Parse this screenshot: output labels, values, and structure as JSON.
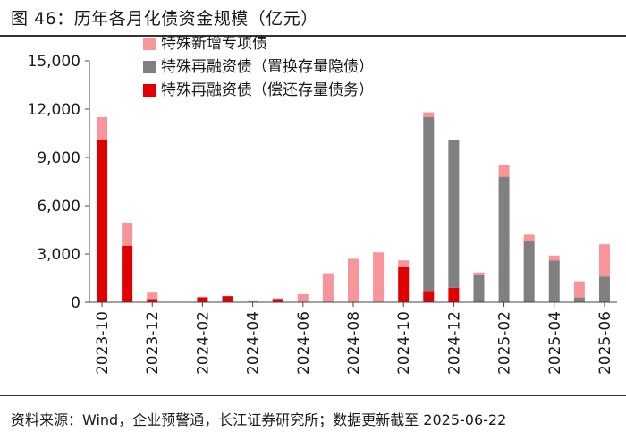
{
  "figure": {
    "title": "图 46：历年各月化债资金规模（亿元）",
    "source": "资料来源：Wind，企业预警通，长江证券研究所；数据更新截至 2025-06-22"
  },
  "chart_data": {
    "type": "bar",
    "stacked": true,
    "title": "历年各月化债资金规模（亿元）",
    "xlabel": "",
    "ylabel": "",
    "ylim": [
      0,
      15000
    ],
    "yticks": [
      0,
      3000,
      6000,
      9000,
      12000,
      15000
    ],
    "ytick_labels": [
      "0",
      "3,000",
      "6,000",
      "9,000",
      "12,000",
      "15,000"
    ],
    "legend_position": "top-center",
    "categories": [
      "2023-10",
      "2023-11",
      "2023-12",
      "2024-01",
      "2024-02",
      "2024-03",
      "2024-04",
      "2024-05",
      "2024-06",
      "2024-07",
      "2024-08",
      "2024-09",
      "2024-10",
      "2024-11",
      "2024-12",
      "2025-01",
      "2025-02",
      "2025-03",
      "2025-04",
      "2025-05",
      "2025-06"
    ],
    "xtick_labels": [
      "2023-10",
      "2023-12",
      "2024-02",
      "2024-04",
      "2024-06",
      "2024-08",
      "2024-10",
      "2024-12",
      "2025-02",
      "2025-04",
      "2025-06"
    ],
    "series": [
      {
        "name": "特殊再融资债（偿还存量债务）",
        "color": "#e00000",
        "values": [
          10100,
          3500,
          200,
          0,
          300,
          380,
          0,
          200,
          0,
          0,
          0,
          0,
          2200,
          700,
          900,
          0,
          0,
          0,
          0,
          0,
          0
        ]
      },
      {
        "name": "特殊再融资债（置换存量隐债）",
        "color": "#808080",
        "values": [
          0,
          0,
          0,
          0,
          0,
          0,
          0,
          0,
          0,
          0,
          0,
          0,
          0,
          10800,
          9200,
          1700,
          7800,
          3800,
          2600,
          300,
          1600
        ]
      },
      {
        "name": "特殊新增专项债",
        "color": "#f7959a",
        "values": [
          1400,
          1450,
          400,
          0,
          50,
          0,
          70,
          50,
          500,
          1800,
          2700,
          3100,
          400,
          300,
          0,
          150,
          700,
          400,
          300,
          1000,
          2000
        ]
      }
    ],
    "legend_order": [
      "特殊新增专项债",
      "特殊再融资债（置换存量隐债）",
      "特殊再融资债（偿还存量债务）"
    ]
  }
}
